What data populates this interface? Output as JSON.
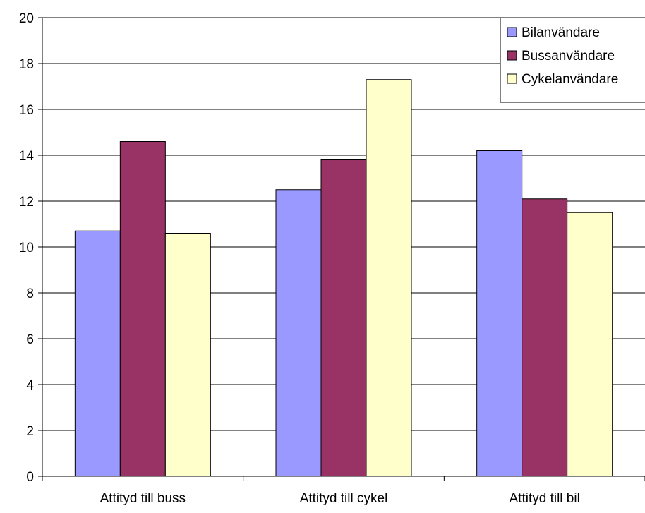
{
  "chart_data": {
    "type": "bar",
    "categories": [
      "Attityd till buss",
      "Attityd till cykel",
      "Attityd till bil"
    ],
    "series": [
      {
        "name": "Bilanvändare",
        "values": [
          10.7,
          12.5,
          14.2
        ],
        "color": "#9999FF"
      },
      {
        "name": "Bussanvändare",
        "values": [
          14.6,
          13.8,
          12.1
        ],
        "color": "#993366"
      },
      {
        "name": "Cykelanvändare",
        "values": [
          10.6,
          17.3,
          11.5
        ],
        "color": "#FFFFCC"
      }
    ],
    "y_ticks": [
      "0",
      "2",
      "4",
      "6",
      "8",
      "10",
      "12",
      "14",
      "16",
      "18",
      "20"
    ],
    "ylim": [
      0,
      20
    ],
    "grid": true,
    "legend_position": "top-right",
    "title": "",
    "xlabel": "",
    "ylabel": ""
  }
}
